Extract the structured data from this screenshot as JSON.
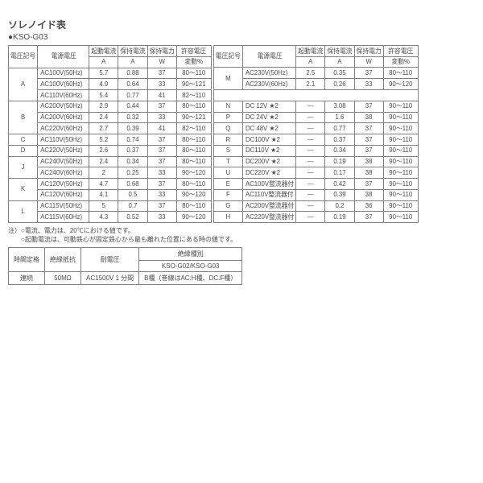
{
  "title": "ソレノイド表",
  "subtitle": "●KSO-G03",
  "headers": {
    "code": "電圧記号",
    "src": "電源電圧",
    "starting": "起動電流",
    "starting2": "A",
    "holding": "保持電流",
    "holding2": "A",
    "power": "保持電力",
    "power2": "W",
    "tol": "許容電圧",
    "tol2": "変動%"
  },
  "left": [
    {
      "code": "A",
      "span": 3,
      "rows": [
        [
          "AC100V(50Hz)",
          "5.7",
          "0.88",
          "37",
          "80～110"
        ],
        [
          "AC100V(60Hz)",
          "4.9",
          "0.64",
          "33",
          "90～121"
        ],
        [
          "AC110V(60Hz)",
          "5.4",
          "0.77",
          "41",
          "82～110"
        ]
      ]
    },
    {
      "code": "B",
      "span": 3,
      "rows": [
        [
          "AC200V(50Hz)",
          "2.9",
          "0.44",
          "37",
          "80～110"
        ],
        [
          "AC200V(60Hz)",
          "2.4",
          "0.32",
          "33",
          "90～121"
        ],
        [
          "AC220V(60Hz)",
          "2.7",
          "0.39",
          "41",
          "82～110"
        ]
      ]
    },
    {
      "code": "C",
      "span": 1,
      "rows": [
        [
          "AC110V(50Hz)",
          "5.2",
          "0.74",
          "37",
          "80～110"
        ]
      ]
    },
    {
      "code": "D",
      "span": 1,
      "rows": [
        [
          "AC220V(50Hz)",
          "2.6",
          "0.37",
          "37",
          "80～110"
        ]
      ]
    },
    {
      "code": "J",
      "span": 2,
      "rows": [
        [
          "AC240V(50Hz)",
          "2.4",
          "0.34",
          "37",
          "80～110"
        ],
        [
          "AC240V(60Hz)",
          "2",
          "0.25",
          "33",
          "90～120"
        ]
      ]
    },
    {
      "code": "K",
      "span": 2,
      "rows": [
        [
          "AC120V(50Hz)",
          "4.7",
          "0.68",
          "37",
          "80～110"
        ],
        [
          "AC120V(60Hz)",
          "4.1",
          "0.5",
          "33",
          "90～120"
        ]
      ]
    },
    {
      "code": "L",
      "span": 2,
      "rows": [
        [
          "AC115V(50Hz)",
          "5",
          "0.7",
          "37",
          "80～110"
        ],
        [
          "AC115V(60Hz)",
          "4.3",
          "0.52",
          "33",
          "90～120"
        ]
      ]
    }
  ],
  "right": [
    {
      "code": "M",
      "span": 2,
      "rows": [
        [
          "AC230V(50Hz)",
          "2.5",
          "0.35",
          "37",
          "80～110"
        ],
        [
          "AC230V(60Hz)",
          "2.1",
          "0.26",
          "33",
          "90～120"
        ]
      ]
    },
    {
      "pad": true
    },
    {
      "code": "N",
      "span": 1,
      "rows": [
        [
          "DC 12V ★2",
          "—",
          "3.08",
          "37",
          "90～110"
        ]
      ]
    },
    {
      "code": "P",
      "span": 1,
      "rows": [
        [
          "DC 24V ★2",
          "—",
          "1.6",
          "38",
          "90～110"
        ]
      ]
    },
    {
      "code": "Q",
      "span": 1,
      "rows": [
        [
          "DC 48V ★2",
          "—",
          "0.77",
          "37",
          "90～110"
        ]
      ]
    },
    {
      "code": "R",
      "span": 1,
      "rows": [
        [
          "DC100V ★2",
          "—",
          "0.37",
          "37",
          "90～110"
        ]
      ]
    },
    {
      "code": "S",
      "span": 1,
      "rows": [
        [
          "DC110V ★2",
          "—",
          "0.34",
          "37",
          "90～110"
        ]
      ]
    },
    {
      "code": "T",
      "span": 1,
      "rows": [
        [
          "DC200V ★2",
          "—",
          "0.19",
          "38",
          "90～110"
        ]
      ]
    },
    {
      "code": "U",
      "span": 1,
      "rows": [
        [
          "DC220V ★2",
          "—",
          "0.17",
          "38",
          "90～110"
        ]
      ]
    },
    {
      "code": "E",
      "span": 1,
      "rows": [
        [
          "AC100V整流器付",
          "—",
          "0.42",
          "37",
          "90～110"
        ]
      ]
    },
    {
      "code": "F",
      "span": 1,
      "rows": [
        [
          "AC110V整流器付",
          "—",
          "0.39",
          "38",
          "90～110"
        ]
      ]
    },
    {
      "code": "G",
      "span": 1,
      "rows": [
        [
          "AC200V整流器付",
          "—",
          "0.2",
          "36",
          "90～110"
        ]
      ]
    },
    {
      "code": "H",
      "span": 1,
      "rows": [
        [
          "AC220V整流器付",
          "—",
          "0.19",
          "37",
          "90～110"
        ]
      ]
    }
  ],
  "notes": [
    "注）○電流、電力は、20℃における値です。",
    "　　○起動電流は、可動鉄心が固定鉄心から最も離れた位置にある時の値です。"
  ],
  "sec": {
    "h": [
      "時間定格",
      "絶縁抵抗",
      "耐電圧",
      "絶縁種別"
    ],
    "h2": "KSO-G02/KSO-G03",
    "r": [
      "連続",
      "50MΩ",
      "AC1500V 1 分間",
      "B種（巻線はAC:H種、DC:F種）"
    ]
  }
}
